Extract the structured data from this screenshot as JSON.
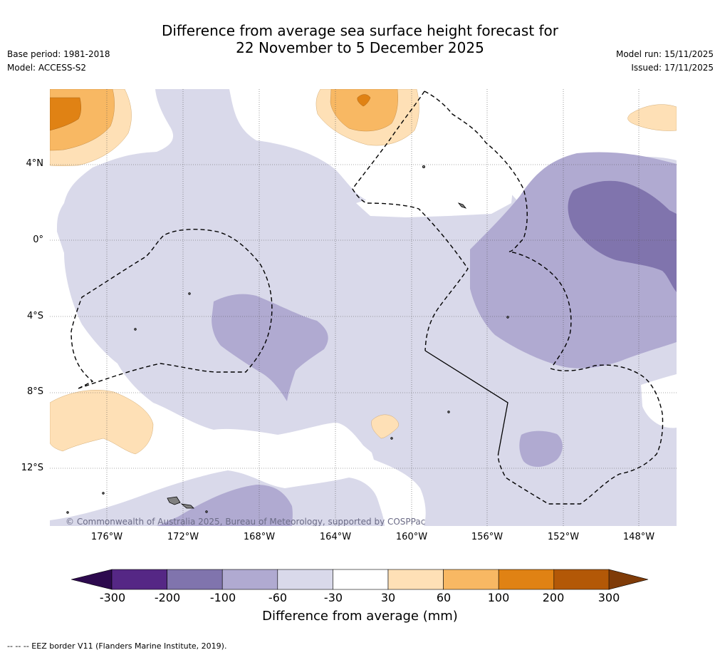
{
  "title_line1": "Difference from average sea surface height forecast for",
  "title_line2": "22 November to 5 December 2025",
  "base_period": "Base period: 1981-2018",
  "model": "Model: ACCESS-S2",
  "model_run": "Model run: 15/11/2025",
  "issued": "Issued: 17/11/2025",
  "lat_labels": [
    "4°N",
    "0°",
    "4°S",
    "8°S",
    "12°S"
  ],
  "lon_labels": [
    "176°W",
    "172°W",
    "168°W",
    "164°W",
    "160°W",
    "156°W",
    "152°W",
    "148°W"
  ],
  "copyright": "© Commonwealth of Australia 2025, Bureau of Meteorology, supported by COSPPac",
  "colorbar": {
    "ticks": [
      "-300",
      "-200",
      "-100",
      "-60",
      "-30",
      "30",
      "60",
      "100",
      "200",
      "300"
    ],
    "colors": [
      "#552785",
      "#8074ad",
      "#b0aad1",
      "#d9d9ea",
      "#ffffff",
      "#fee0b6",
      "#f8b863",
      "#e08214",
      "#b35807"
    ],
    "under_color": "#2d0a4e",
    "over_color": "#7f3b08",
    "label": "Difference from average (mm)"
  },
  "footnote": "--  --  -- EEZ border V11 (Flanders Marine Institute, 2019).",
  "colors": {
    "background": "#ffffff",
    "land": "#808080"
  }
}
